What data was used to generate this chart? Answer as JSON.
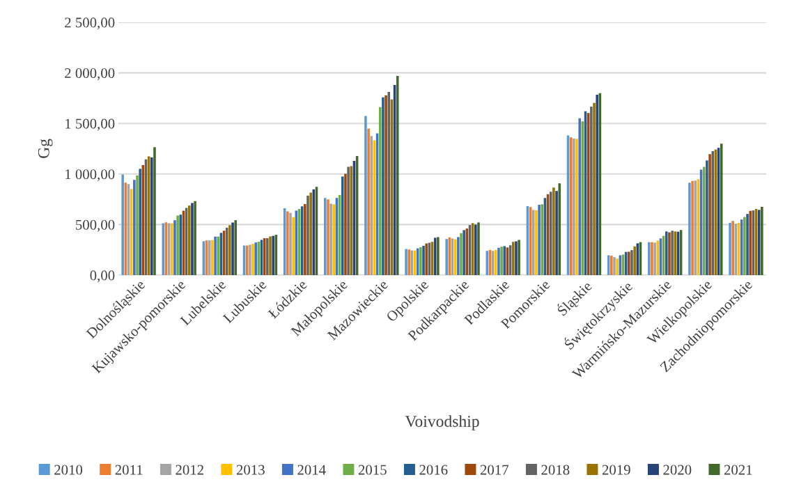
{
  "chart_data": {
    "type": "bar",
    "xlabel": "Voivodship",
    "ylabel": "Gg",
    "categories": [
      "Dolnośląskie",
      "Kujawsko-pomorskie",
      "Lubelskie",
      "Lubuskie",
      "Łódzkie",
      "Małopolskie",
      "Mazowieckie",
      "Opolskie",
      "Podkarpackie",
      "Podlaskie",
      "Pomorskie",
      "Śląskie",
      "Świętokrzyskie",
      "Warmińsko-Mazurskie",
      "Wielkopolskie",
      "Zachodniopomorskie"
    ],
    "ylim": [
      0,
      2500
    ],
    "yticks": [
      {
        "value": 0,
        "label": "0,00"
      },
      {
        "value": 500,
        "label": "500,00"
      },
      {
        "value": 1000,
        "label": "1 000,00"
      },
      {
        "value": 1500,
        "label": "1 500,00"
      },
      {
        "value": 2000,
        "label": "2 000,00"
      },
      {
        "value": 2500,
        "label": "2 500,00"
      }
    ],
    "grid": "y",
    "legend": "bottom",
    "series": [
      {
        "name": "2010",
        "color": "#5b9bd5",
        "values": [
          995,
          513,
          335,
          293,
          661,
          763,
          1574,
          258,
          357,
          240,
          682,
          1380,
          196,
          326,
          914,
          517
        ]
      },
      {
        "name": "2011",
        "color": "#ed7d31",
        "values": [
          914,
          522,
          342,
          293,
          631,
          749,
          1449,
          253,
          373,
          249,
          673,
          1362,
          192,
          326,
          931,
          536
        ]
      },
      {
        "name": "2012",
        "color": "#a5a5a5",
        "values": [
          900,
          513,
          344,
          300,
          615,
          707,
          1375,
          244,
          362,
          240,
          645,
          1350,
          178,
          321,
          935,
          508
        ]
      },
      {
        "name": "2013",
        "color": "#ffc000",
        "values": [
          852,
          513,
          346,
          309,
          574,
          700,
          1332,
          244,
          355,
          249,
          641,
          1348,
          164,
          342,
          949,
          517
        ]
      },
      {
        "name": "2014",
        "color": "#4472c4",
        "values": [
          942,
          543,
          381,
          323,
          638,
          763,
          1401,
          265,
          376,
          270,
          696,
          1551,
          196,
          363,
          1044,
          550
        ]
      },
      {
        "name": "2015",
        "color": "#70ad47",
        "values": [
          986,
          589,
          381,
          330,
          654,
          793,
          1661,
          276,
          415,
          281,
          700,
          1521,
          203,
          388,
          1071,
          575
        ]
      },
      {
        "name": "2016",
        "color": "#255e91",
        "values": [
          1051,
          598,
          418,
          349,
          680,
          975,
          1758,
          290,
          445,
          286,
          763,
          1620,
          229,
          432,
          1134,
          605
        ]
      },
      {
        "name": "2017",
        "color": "#9e480e",
        "values": [
          1088,
          637,
          439,
          365,
          703,
          1002,
          1776,
          313,
          461,
          274,
          800,
          1603,
          231,
          423,
          1196,
          635
        ]
      },
      {
        "name": "2018",
        "color": "#636363",
        "values": [
          1145,
          665,
          469,
          365,
          786,
          1071,
          1811,
          320,
          495,
          295,
          825,
          1666,
          247,
          439,
          1226,
          640
        ]
      },
      {
        "name": "2019",
        "color": "#997300",
        "values": [
          1175,
          688,
          494,
          383,
          816,
          1078,
          1737,
          329,
          514,
          329,
          866,
          1703,
          284,
          432,
          1242,
          655
        ]
      },
      {
        "name": "2020",
        "color": "#264478",
        "values": [
          1164,
          713,
          520,
          388,
          848,
          1129,
          1880,
          369,
          500,
          334,
          832,
          1783,
          314,
          429,
          1258,
          645
        ]
      },
      {
        "name": "2021",
        "color": "#43682b",
        "values": [
          1265,
          732,
          543,
          399,
          873,
          1177,
          1970,
          376,
          521,
          348,
          908,
          1799,
          326,
          446,
          1300,
          675
        ]
      }
    ]
  }
}
